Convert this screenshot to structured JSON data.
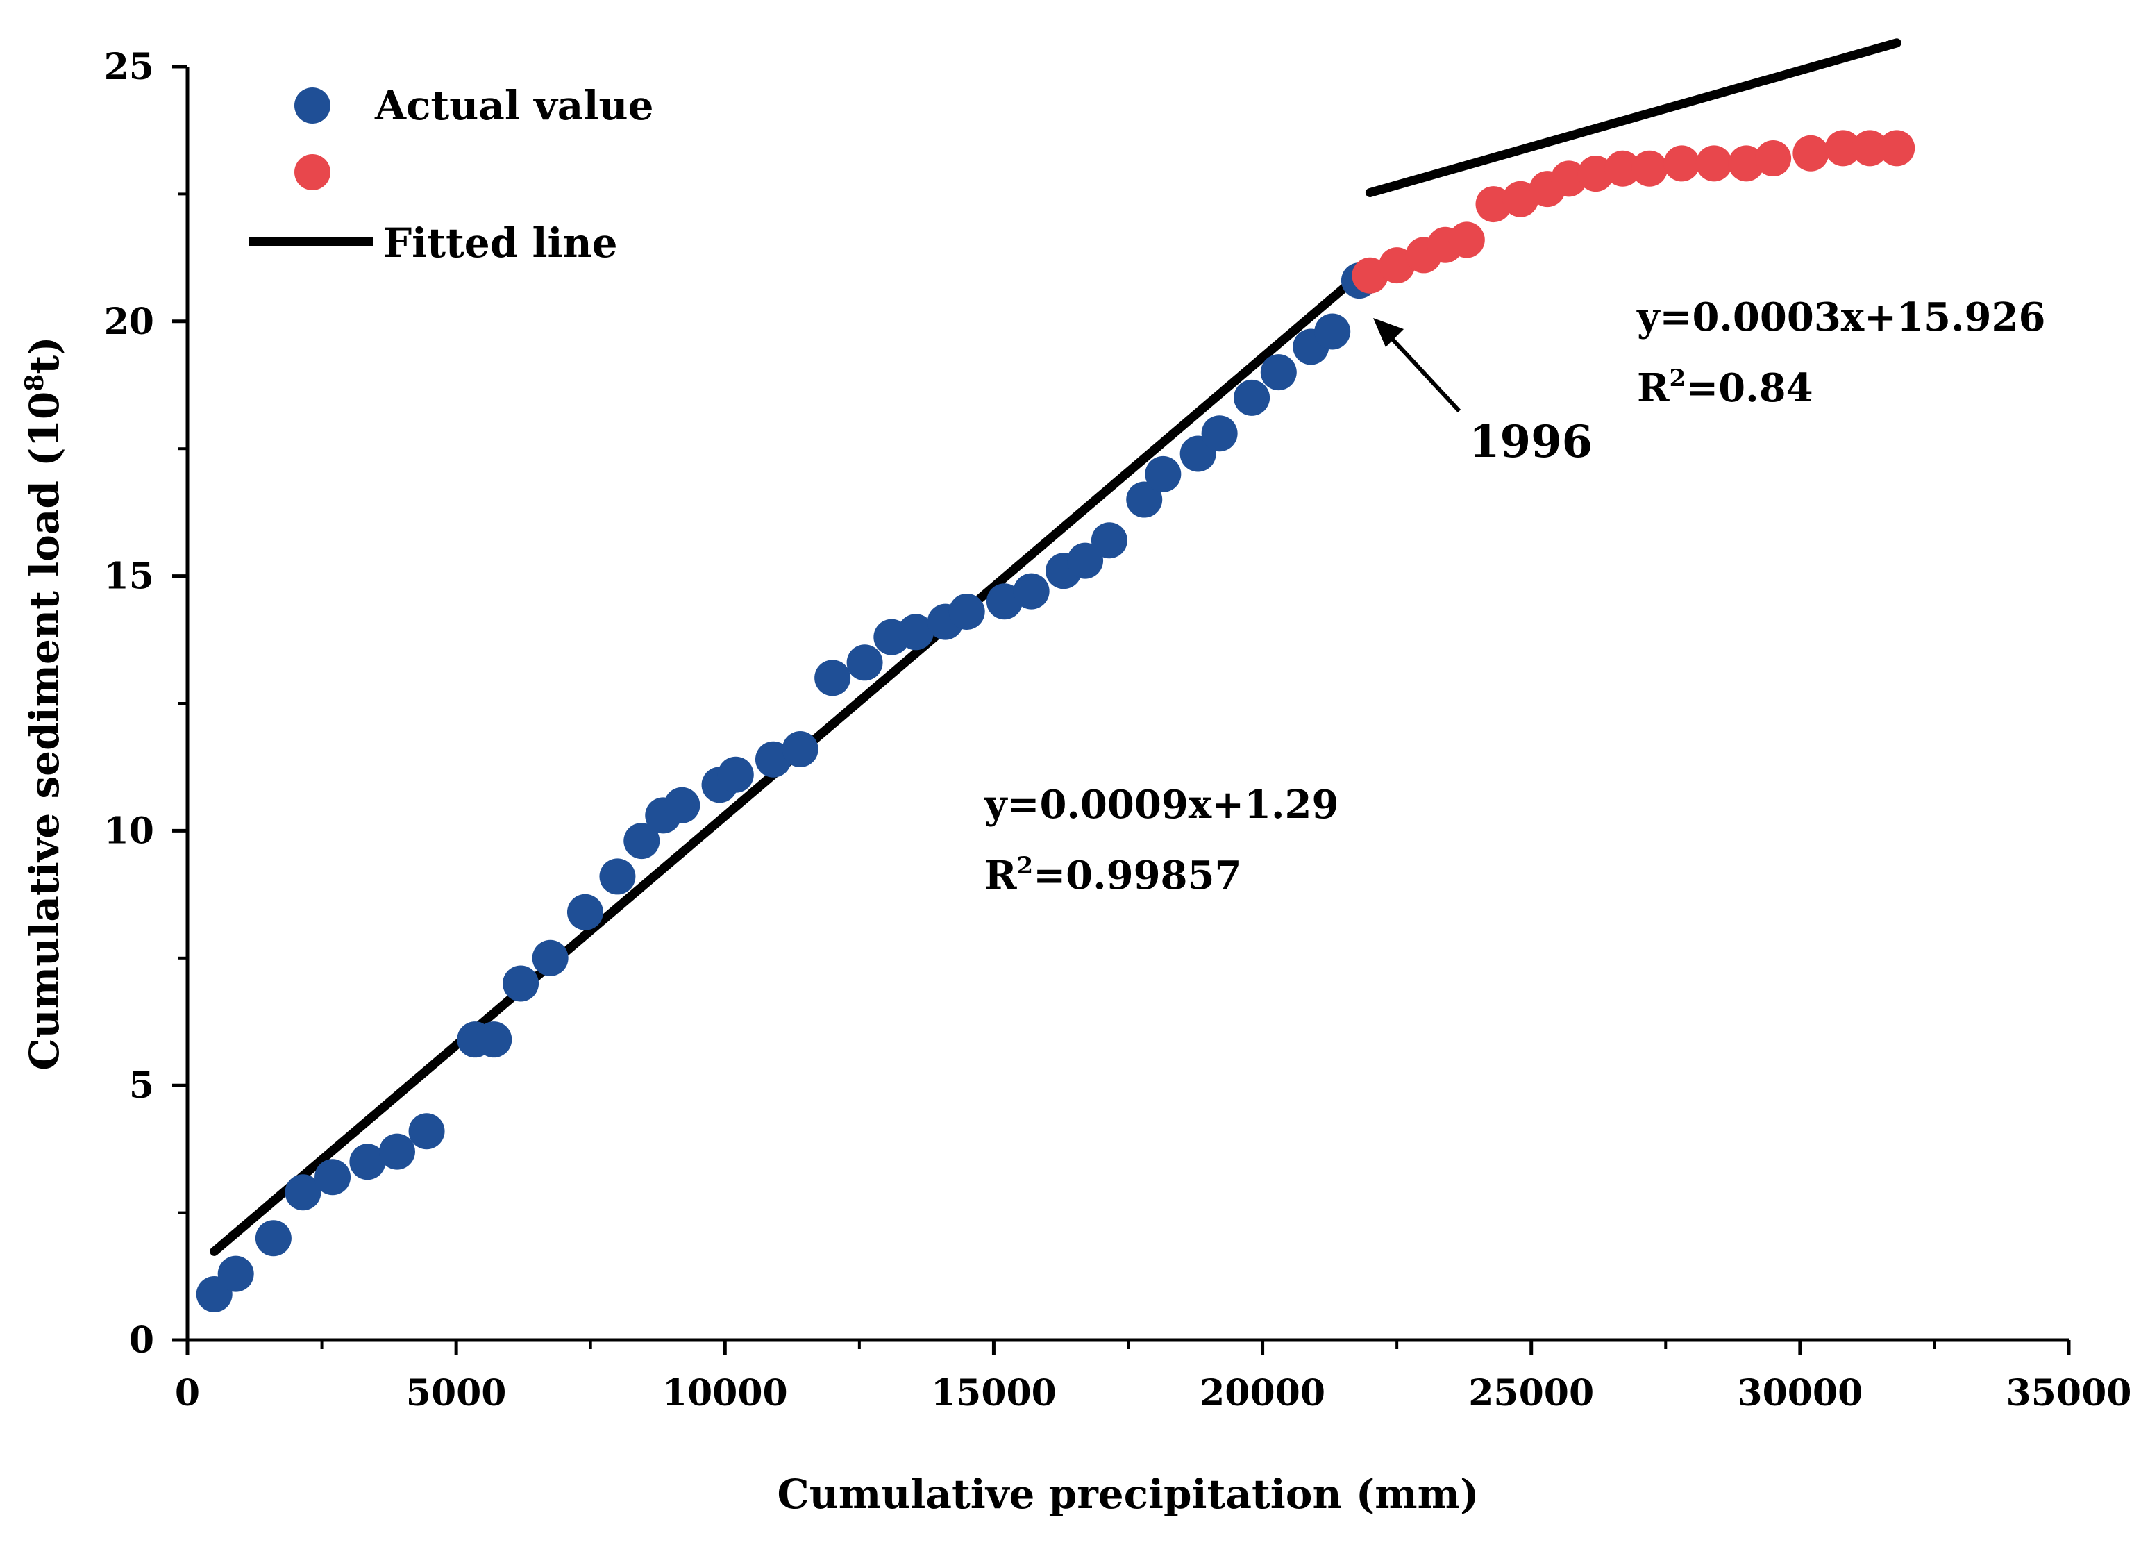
{
  "chart_data": {
    "type": "scatter",
    "title": "",
    "xlabel": "Cumulative precipitation  (mm)",
    "ylabel_main": "Cumulative sediment load  (10",
    "ylabel_sup": "8",
    "ylabel_tail": "t)",
    "xlim": [
      0,
      35000
    ],
    "ylim": [
      0,
      25
    ],
    "x_ticks": [
      0,
      5000,
      10000,
      15000,
      20000,
      25000,
      30000,
      35000
    ],
    "y_ticks": [
      0,
      5,
      10,
      15,
      20,
      25
    ],
    "x_tick_labels": [
      "0",
      "5000",
      "10000",
      "15000",
      "20000",
      "25000",
      "30000",
      "35000"
    ],
    "y_tick_labels": [
      "0",
      "5",
      "10",
      "15",
      "20",
      "25"
    ],
    "legend_placement": "top-left",
    "legend": {
      "actual": "Actual value",
      "post": "",
      "fitted": "Fitted line"
    },
    "colors": {
      "actual": "#1f4f96",
      "post": "#e8474c",
      "line": "#000000"
    },
    "series": [
      {
        "name": "Actual value",
        "color": "#1f4f96",
        "x": [
          500,
          900,
          1600,
          2150,
          2700,
          3350,
          3900,
          4450,
          5350,
          5700,
          6200,
          6750,
          7400,
          8000,
          8450,
          8850,
          9200,
          9900,
          10200,
          10900,
          11400,
          12000,
          12600,
          13100,
          13550,
          14100,
          14500,
          15200,
          15700,
          16300,
          16700,
          17150,
          17800,
          18150,
          18800,
          19200,
          19800,
          20300,
          20900,
          21300,
          21800
        ],
        "y": [
          0.9,
          1.3,
          2.0,
          2.9,
          3.2,
          3.5,
          3.7,
          4.1,
          5.9,
          5.9,
          7.0,
          7.5,
          8.4,
          9.1,
          9.8,
          10.3,
          10.5,
          10.9,
          11.1,
          11.4,
          11.6,
          13.0,
          13.3,
          13.8,
          13.9,
          14.1,
          14.3,
          14.5,
          14.7,
          15.1,
          15.3,
          15.7,
          16.5,
          17.0,
          17.4,
          17.8,
          18.5,
          19.0,
          19.5,
          19.8,
          20.8
        ]
      },
      {
        "name": "",
        "color": "#e8474c",
        "x": [
          22000,
          22500,
          23000,
          23400,
          23800,
          24300,
          24800,
          25300,
          25700,
          26200,
          26700,
          27200,
          27800,
          28400,
          29000,
          29500,
          30200,
          30800,
          31300,
          31800
        ],
        "y": [
          20.9,
          21.1,
          21.3,
          21.5,
          21.6,
          22.3,
          22.4,
          22.6,
          22.8,
          22.9,
          23.0,
          23.0,
          23.1,
          23.1,
          23.1,
          23.2,
          23.3,
          23.4,
          23.4,
          23.4
        ]
      }
    ],
    "fits": [
      {
        "name": "fit-pre-1996",
        "slope": 0.0009,
        "intercept": 1.29,
        "x_range": [
          500,
          21800
        ]
      },
      {
        "name": "fit-post-1996",
        "slope": 0.0003,
        "intercept": 15.926,
        "x_range": [
          22000,
          31800
        ]
      }
    ],
    "annotations": {
      "fit1_eq": "y=0.0009x+1.29",
      "fit1_r2_main": "R",
      "fit1_r2_sup": "2",
      "fit1_r2_tail": "=0.99857",
      "fit2_eq": "y=0.0003x+15.926",
      "fit2_r2_main": "R",
      "fit2_r2_sup": "2",
      "fit2_r2_tail": "=0.84",
      "breakpoint_year": "1996",
      "breakpoint_x": 21900,
      "breakpoint_y": 20.8
    }
  }
}
